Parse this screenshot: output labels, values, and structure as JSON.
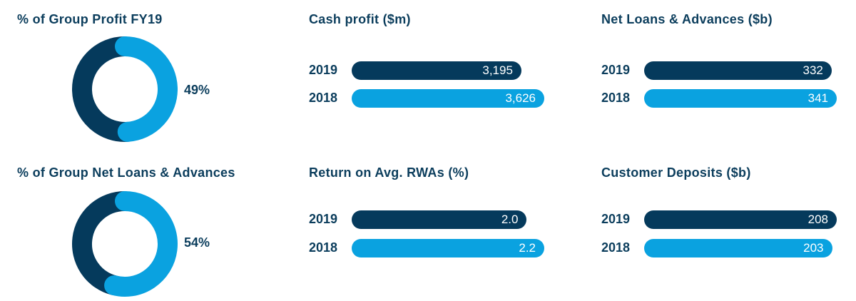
{
  "colors": {
    "dark": "#053a5c",
    "light": "#0aa2e0",
    "text": "#0b3d5c",
    "track": "#ffffff"
  },
  "chart_data": [
    {
      "type": "pie",
      "title": "% of Group Profit FY19",
      "values": [
        49,
        51
      ],
      "label": "49%"
    },
    {
      "type": "pie",
      "title": "% of Group Net Loans & Advances",
      "values": [
        54,
        46
      ],
      "label": "54%"
    },
    {
      "type": "bar",
      "title": "Cash profit ($m)",
      "categories": [
        "2019",
        "2018"
      ],
      "values": [
        3195,
        3626
      ],
      "labels": [
        "3,195",
        "3,626"
      ]
    },
    {
      "type": "bar",
      "title": "Net Loans & Advances ($b)",
      "categories": [
        "2019",
        "2018"
      ],
      "values": [
        332,
        341
      ],
      "labels": [
        "332",
        "341"
      ]
    },
    {
      "type": "bar",
      "title": "Return on Avg. RWAs (%)",
      "categories": [
        "2019",
        "2018"
      ],
      "values": [
        2.0,
        2.2
      ],
      "labels": [
        "2.0",
        "2.2"
      ]
    },
    {
      "type": "bar",
      "title": "Customer Deposits ($b)",
      "categories": [
        "2019",
        "2018"
      ],
      "values": [
        208,
        203
      ],
      "labels": [
        "208",
        "203"
      ]
    }
  ]
}
